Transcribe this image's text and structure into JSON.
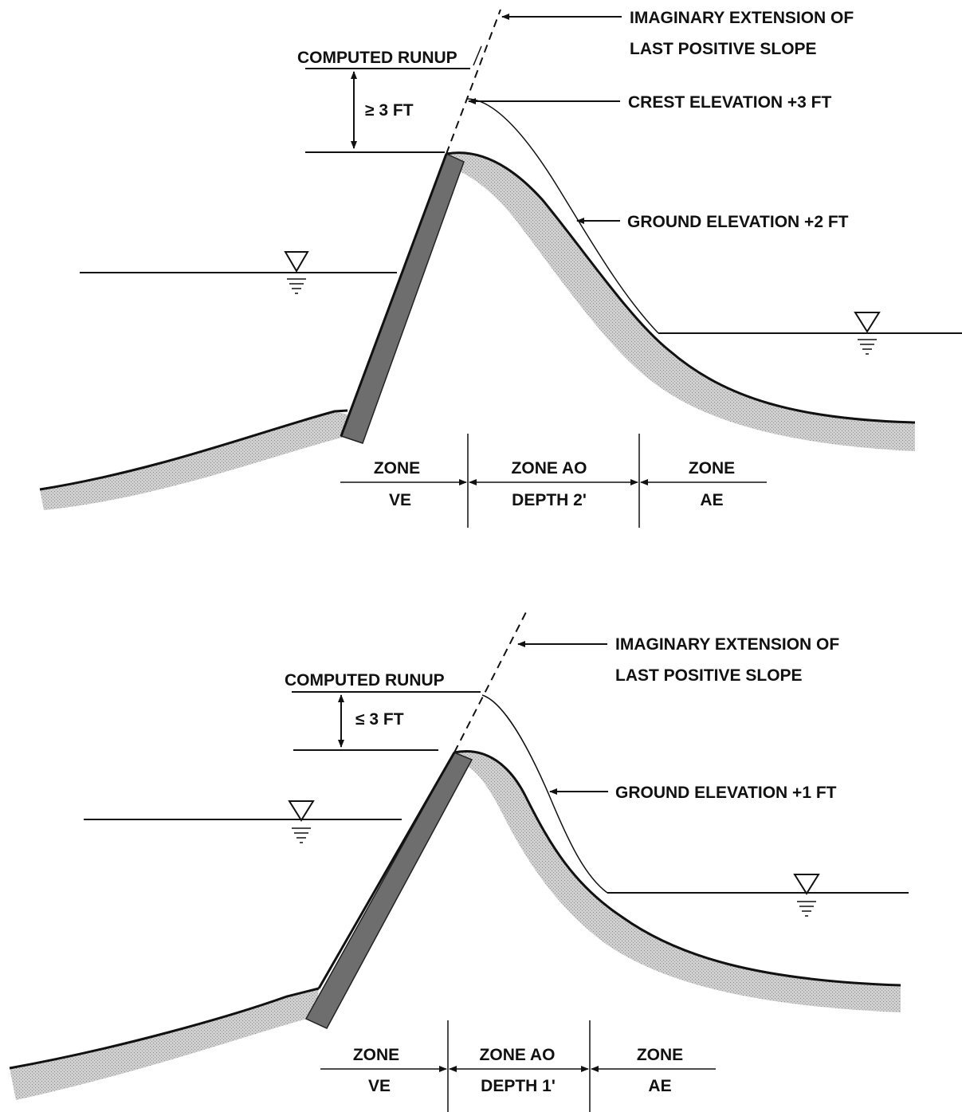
{
  "panels": [
    {
      "callout_extension_line1": "IMAGINARY EXTENSION OF",
      "callout_extension_line2": "LAST POSITIVE SLOPE",
      "computed_runup": "COMPUTED RUNUP",
      "runup_height": "≥ 3 FT",
      "crest_elevation": "CREST ELEVATION +3 FT",
      "ground_elevation": "GROUND ELEVATION +2 FT",
      "zone_ve_top": "ZONE",
      "zone_ve_bottom": "VE",
      "zone_ao_top": "ZONE AO",
      "zone_ao_bottom": "DEPTH 2'",
      "zone_ae_top": "ZONE",
      "zone_ae_bottom": "AE"
    },
    {
      "callout_extension_line1": "IMAGINARY EXTENSION OF",
      "callout_extension_line2": "LAST POSITIVE SLOPE",
      "computed_runup": "COMPUTED RUNUP",
      "runup_height": "≤ 3 FT",
      "ground_elevation": "GROUND ELEVATION +1 FT",
      "zone_ve_top": "ZONE",
      "zone_ve_bottom": "VE",
      "zone_ao_top": "ZONE AO",
      "zone_ao_bottom": "DEPTH 1'",
      "zone_ae_top": "ZONE",
      "zone_ae_bottom": "AE"
    }
  ],
  "colors": {
    "ink": "#111111",
    "soil": "#c6c6c6",
    "wall": "#6e6e6e"
  }
}
